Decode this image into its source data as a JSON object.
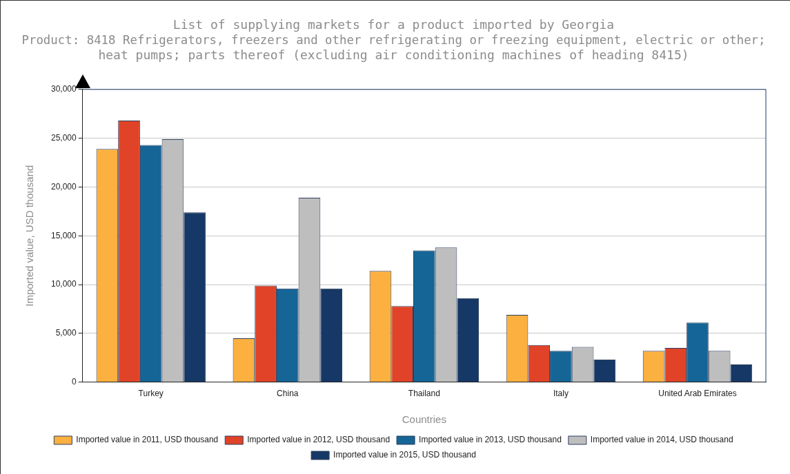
{
  "chart_data": {
    "type": "bar",
    "title": [
      "List of supplying markets for a product imported by Georgia",
      "Product: 8418 Refrigerators, freezers and other refrigerating or freezing equipment, electric or other;",
      "heat pumps; parts thereof (excluding air conditioning machines of heading 8415)"
    ],
    "xlabel": "Countries",
    "ylabel": "Imported value, USD thousand",
    "categories": [
      "Turkey",
      "China",
      "Thailand",
      "Italy",
      "United Arab Emirates"
    ],
    "series": [
      {
        "name": "Imported value in 2011, USD thousand",
        "color": "#fbb040",
        "values": [
          23900,
          4500,
          11400,
          6900,
          3200
        ]
      },
      {
        "name": "Imported value in 2012, USD thousand",
        "color": "#e04327",
        "values": [
          26800,
          9900,
          7800,
          3800,
          3500
        ]
      },
      {
        "name": "Imported value in 2013, USD thousand",
        "color": "#156596",
        "values": [
          24300,
          9600,
          13500,
          3200,
          6100
        ]
      },
      {
        "name": "Imported value in 2014, USD thousand",
        "color": "#bebebe",
        "values": [
          24900,
          18900,
          13800,
          3600,
          3200
        ]
      },
      {
        "name": "Imported value in 2015, USD thousand",
        "color": "#163866",
        "values": [
          17400,
          9600,
          8600,
          2300,
          1800
        ]
      }
    ],
    "ylim": [
      0,
      30000
    ],
    "yticks": [
      {
        "value": 0,
        "label": "0"
      },
      {
        "value": 5000,
        "label": "5,000"
      },
      {
        "value": 10000,
        "label": "10,000"
      },
      {
        "value": 15000,
        "label": "15,000"
      },
      {
        "value": 20000,
        "label": "20,000"
      },
      {
        "value": 25000,
        "label": "25,000"
      },
      {
        "value": 30000,
        "label": "30,000"
      }
    ],
    "grid": "y",
    "legend": "bottom"
  }
}
